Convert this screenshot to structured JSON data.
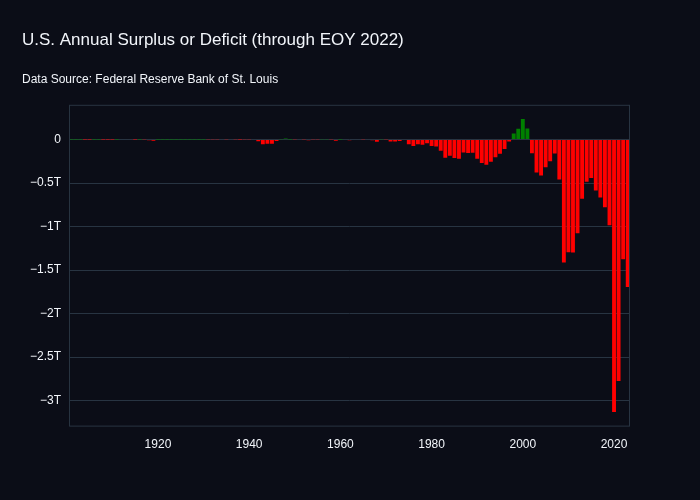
{
  "chart_data": {
    "type": "bar",
    "title": "U.S. Annual Surplus or Deficit (through EOY 2022)",
    "subtitle": "Data Source: Federal Reserve Bank of St. Louis",
    "x": [
      1901,
      1902,
      1903,
      1904,
      1905,
      1906,
      1907,
      1908,
      1909,
      1910,
      1911,
      1912,
      1913,
      1914,
      1915,
      1916,
      1917,
      1918,
      1919,
      1920,
      1921,
      1922,
      1923,
      1924,
      1925,
      1926,
      1927,
      1928,
      1929,
      1930,
      1931,
      1932,
      1933,
      1934,
      1935,
      1936,
      1937,
      1938,
      1939,
      1940,
      1941,
      1942,
      1943,
      1944,
      1945,
      1946,
      1947,
      1948,
      1949,
      1950,
      1951,
      1952,
      1953,
      1954,
      1955,
      1956,
      1957,
      1958,
      1959,
      1960,
      1961,
      1962,
      1963,
      1964,
      1965,
      1966,
      1967,
      1968,
      1969,
      1970,
      1971,
      1972,
      1973,
      1974,
      1975,
      1976,
      1977,
      1978,
      1979,
      1980,
      1981,
      1982,
      1983,
      1984,
      1985,
      1986,
      1987,
      1988,
      1989,
      1990,
      1991,
      1992,
      1993,
      1994,
      1995,
      1996,
      1997,
      1998,
      1999,
      2000,
      2001,
      2002,
      2003,
      2004,
      2005,
      2006,
      2007,
      2008,
      2009,
      2010,
      2011,
      2012,
      2013,
      2014,
      2015,
      2016,
      2017,
      2018,
      2019,
      2020,
      2021,
      2022,
      2023
    ],
    "values": [
      6e-05,
      8e-05,
      5e-05,
      -4e-05,
      -2e-05,
      3e-05,
      9e-05,
      -6e-05,
      -9e-05,
      -2e-05,
      1e-05,
      0,
      0,
      0,
      -6e-05,
      5e-05,
      -0.00085,
      -0.00903,
      -0.01336,
      0.00029,
      0.00051,
      0.00074,
      0.00071,
      0.00096,
      0.00072,
      0.00087,
      0.00116,
      0.00094,
      0.00073,
      0.00074,
      -0.00046,
      -0.00274,
      -0.0026,
      -0.00359,
      -0.0028,
      -0.0043,
      -0.00219,
      -9e-05,
      -0.00285,
      -0.00292,
      -0.00494,
      -0.0205,
      -0.05455,
      -0.04756,
      -0.04755,
      -0.01594,
      0.00402,
      0.0118,
      0.00058,
      -0.00312,
      0.0061,
      -0.00152,
      -0.00649,
      -0.00115,
      -0.00299,
      0.00395,
      0.00341,
      -0.00277,
      -0.01285,
      0.0003,
      -0.00334,
      -0.00715,
      -0.00476,
      -0.00592,
      -0.00141,
      -0.0037,
      -0.00864,
      -0.02516,
      0.00324,
      -0.00284,
      -0.02303,
      -0.02337,
      -0.01491,
      -0.00614,
      -0.05324,
      -0.07373,
      -0.05366,
      -0.05919,
      -0.04073,
      -0.07383,
      -0.07897,
      -0.12798,
      -0.2078,
      -0.18537,
      -0.21231,
      -0.22123,
      -0.14973,
      -0.15518,
      -0.15264,
      -0.22104,
      -0.26924,
      -0.29032,
      -0.25505,
      -0.20319,
      -0.16395,
      -0.10743,
      -0.02188,
      0.06927,
      0.12561,
      0.23624,
      0.12824,
      -0.15776,
      -0.37759,
      -0.41273,
      -0.31835,
      -0.24818,
      -0.1607,
      -0.45855,
      -1.41269,
      -1.29437,
      -1.2996,
      -1.07657,
      -0.67978,
      -0.4846,
      -0.44196,
      -0.58465,
      -0.66545,
      -0.77914,
      -0.98359,
      -3.13246,
      -2.77531,
      -1.37555,
      -1.69399
    ],
    "colors": [
      "#008000",
      "#008000",
      "#008000",
      "#ff0000",
      "#ff0000",
      "#008000",
      "#008000",
      "#ff0000",
      "#ff0000",
      "#ff0000",
      "#008000",
      "#008000",
      "#ff0000",
      "#ff0000",
      "#ff0000",
      "#008000",
      "#ff0000",
      "#ff0000",
      "#ff0000",
      "#008000",
      "#008000",
      "#008000",
      "#008000",
      "#008000",
      "#008000",
      "#008000",
      "#008000",
      "#008000",
      "#008000",
      "#008000",
      "#ff0000",
      "#ff0000",
      "#ff0000",
      "#ff0000",
      "#ff0000",
      "#ff0000",
      "#ff0000",
      "#ff0000",
      "#ff0000",
      "#ff0000",
      "#ff0000",
      "#ff0000",
      "#ff0000",
      "#ff0000",
      "#ff0000",
      "#ff0000",
      "#008000",
      "#008000",
      "#008000",
      "#ff0000",
      "#008000",
      "#ff0000",
      "#ff0000",
      "#ff0000",
      "#ff0000",
      "#008000",
      "#008000",
      "#ff0000",
      "#ff0000",
      "#008000",
      "#ff0000",
      "#ff0000",
      "#ff0000",
      "#ff0000",
      "#ff0000",
      "#ff0000",
      "#ff0000",
      "#ff0000",
      "#008000",
      "#ff0000",
      "#ff0000",
      "#ff0000",
      "#ff0000",
      "#ff0000",
      "#ff0000",
      "#ff0000",
      "#ff0000",
      "#ff0000",
      "#ff0000",
      "#ff0000",
      "#ff0000",
      "#ff0000",
      "#ff0000",
      "#ff0000",
      "#ff0000",
      "#ff0000",
      "#ff0000",
      "#ff0000",
      "#ff0000",
      "#ff0000",
      "#ff0000",
      "#ff0000",
      "#ff0000",
      "#ff0000",
      "#ff0000",
      "#ff0000",
      "#ff0000",
      "#008000",
      "#008000",
      "#008000",
      "#008000",
      "#ff0000",
      "#ff0000",
      "#ff0000",
      "#ff0000",
      "#ff0000",
      "#ff0000",
      "#ff0000",
      "#ff0000",
      "#ff0000",
      "#ff0000",
      "#ff0000",
      "#ff0000",
      "#ff0000",
      "#ff0000",
      "#ff0000",
      "#ff0000",
      "#ff0000",
      "#ff0000",
      "#ff0000",
      "#ff0000",
      "#ff0000",
      "#ff0000"
    ],
    "xlim": [
      1900.5,
      2023.5
    ],
    "xticks": [
      1920,
      1940,
      1960,
      1980,
      2000,
      2020
    ],
    "ylim": [
      -3.3,
      0.4
    ],
    "yticks": [
      0,
      {
        "value": -0.5,
        "label": "−0.5T"
      },
      {
        "value": -1,
        "label": "−1T"
      },
      {
        "value": -1.5,
        "label": "−1.5T"
      },
      {
        "value": -2,
        "label": "−2T"
      },
      {
        "value": -2.5,
        "label": "−2.5T"
      },
      {
        "value": -3,
        "label": "−3T"
      }
    ],
    "grid": true
  }
}
